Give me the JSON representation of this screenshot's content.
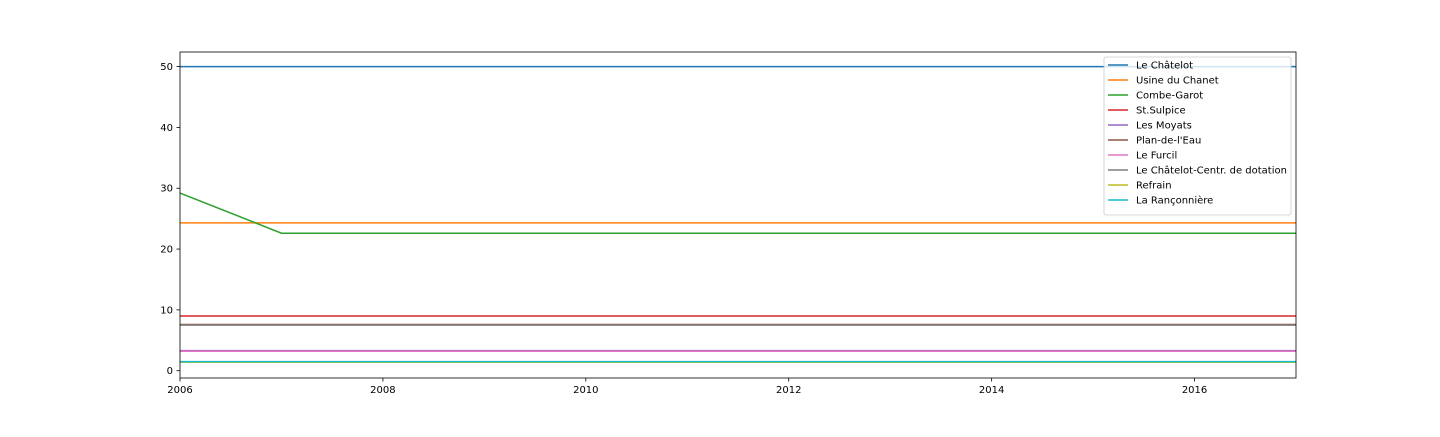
{
  "chart_data": {
    "type": "line",
    "title": "",
    "xlabel": "",
    "ylabel": "",
    "xlim": [
      2006,
      2017
    ],
    "ylim": [
      -1.2,
      52.4
    ],
    "x_ticks": [
      2006,
      2008,
      2010,
      2012,
      2014,
      2016
    ],
    "y_ticks": [
      0,
      10,
      20,
      30,
      40,
      50
    ],
    "grid": false,
    "legend_position": "top-right",
    "x": [
      2006,
      2007,
      2008,
      2009,
      2010,
      2011,
      2012,
      2013,
      2014,
      2015,
      2016,
      2017
    ],
    "series": [
      {
        "name": "Le Châtelot",
        "color": "#1f77b4",
        "values": [
          50,
          50,
          50,
          50,
          50,
          50,
          50,
          50,
          50,
          50,
          50,
          50
        ]
      },
      {
        "name": "Usine du Chanet",
        "color": "#ff7f0e",
        "values": [
          24.3,
          24.3,
          24.3,
          24.3,
          24.3,
          24.3,
          24.3,
          24.3,
          24.3,
          24.3,
          24.3,
          24.3
        ]
      },
      {
        "name": "Combe-Garot",
        "color": "#2ca02c",
        "values": [
          29.2,
          22.6,
          22.6,
          22.6,
          22.6,
          22.6,
          22.6,
          22.6,
          22.6,
          22.6,
          22.6,
          22.6
        ]
      },
      {
        "name": "St.Sulpice",
        "color": "#d62728",
        "values": [
          9,
          9,
          9,
          9,
          9,
          9,
          9,
          9,
          9,
          9,
          9,
          9
        ]
      },
      {
        "name": "Les Moyats",
        "color": "#9467bd",
        "values": [
          3.3,
          3.3,
          3.3,
          3.3,
          3.3,
          3.3,
          3.3,
          3.3,
          3.3,
          3.3,
          3.3,
          3.3
        ]
      },
      {
        "name": "Plan-de-l'Eau",
        "color": "#8c564b",
        "values": [
          7.6,
          7.6,
          7.6,
          7.6,
          7.6,
          7.6,
          7.6,
          7.6,
          7.6,
          7.6,
          7.6,
          7.6
        ]
      },
      {
        "name": "Le Furcil",
        "color": "#e377c2",
        "values": [
          3.2,
          3.2,
          3.2,
          3.2,
          3.2,
          3.2,
          3.2,
          3.2,
          3.2,
          3.2,
          3.2,
          3.2
        ]
      },
      {
        "name": "Le Châtelot-Centr. de dotation",
        "color": "#7f7f7f",
        "values": [
          7.5,
          7.5,
          7.5,
          7.5,
          7.5,
          7.5,
          7.5,
          7.5,
          7.5,
          7.5,
          7.5,
          7.5
        ]
      },
      {
        "name": "Refrain",
        "color": "#bcbd22",
        "values": [
          1.4,
          1.4,
          1.4,
          1.4,
          1.4,
          1.4,
          1.4,
          1.4,
          1.4,
          1.4,
          1.4,
          1.4
        ]
      },
      {
        "name": "La Rançonnière",
        "color": "#17becf",
        "values": [
          1.5,
          1.5,
          1.5,
          1.5,
          1.5,
          1.5,
          1.5,
          1.5,
          1.5,
          1.5,
          1.5,
          1.5
        ]
      }
    ]
  }
}
